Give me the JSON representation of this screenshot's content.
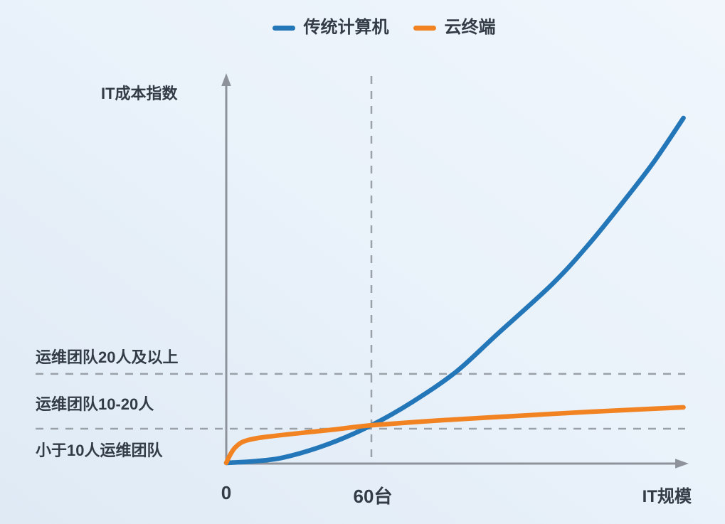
{
  "chart_data": {
    "type": "line",
    "title": "",
    "xlabel": "IT规模",
    "ylabel": "IT成本指数",
    "x_unit": "台",
    "xlim": [
      0,
      192
    ],
    "ylim": [
      0,
      112
    ],
    "grid": false,
    "legend_position": "top-center",
    "x_ticks": [
      {
        "value": 0,
        "label": "0"
      },
      {
        "value": 60,
        "label": "60台"
      }
    ],
    "series": [
      {
        "name": "传统计算机",
        "color": "#2377b9",
        "points": [
          [
            0,
            0
          ],
          [
            12,
            0.5
          ],
          [
            24,
            1.6
          ],
          [
            42,
            5.4
          ],
          [
            60,
            10.9
          ],
          [
            77,
            17.7
          ],
          [
            95,
            26.4
          ],
          [
            112,
            37.3
          ],
          [
            135,
            52
          ],
          [
            150,
            63.5
          ],
          [
            165,
            76.5
          ],
          [
            177,
            87.5
          ],
          [
            189,
            100
          ]
        ]
      },
      {
        "name": "云终端",
        "color": "#f28322",
        "points": [
          [
            0,
            0
          ],
          [
            1,
            1.5
          ],
          [
            2,
            2.8
          ],
          [
            3.5,
            4.3
          ],
          [
            6,
            5.8
          ],
          [
            9,
            6.6
          ],
          [
            15,
            7.4
          ],
          [
            30,
            8.6
          ],
          [
            45,
            9.7
          ],
          [
            60,
            10.9
          ],
          [
            90,
            12.4
          ],
          [
            120,
            13.6
          ],
          [
            150,
            14.8
          ],
          [
            189,
            16.1
          ]
        ]
      }
    ],
    "reference_lines": {
      "horizontal": [
        {
          "y": 25.8
        },
        {
          "y": 9.9
        }
      ],
      "vertical": [
        {
          "x": 60
        }
      ]
    },
    "annotations": [
      {
        "text": "运维团队20人及以上",
        "region": "above y=25.8"
      },
      {
        "text": "运维团队10-20人",
        "region": "between y=9.9 and y=25.8"
      },
      {
        "text": "小于10人运维团队",
        "region": "below y=9.9"
      }
    ]
  },
  "colors": {
    "axis": "#8e939b",
    "dashed": "#9ba1a9",
    "text": "#333b47",
    "background_top_right": "#f0f6fc",
    "background_bottom_left": "#dfeaf5"
  }
}
